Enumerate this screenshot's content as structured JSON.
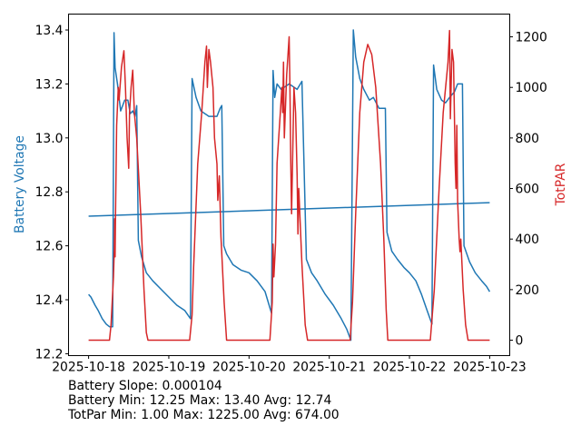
{
  "chart_data": {
    "type": "line",
    "xlabel": "",
    "x_ticks": [
      "2025-10-18",
      "2025-10-19",
      "2025-10-20",
      "2025-10-21",
      "2025-10-22",
      "2025-10-23"
    ],
    "x_unit": "days since 2025-10-18",
    "xlim": [
      -0.25,
      5.25
    ],
    "left_axis": {
      "label": "Battery Voltage",
      "color": "#1f77b4",
      "ylim": [
        12.193,
        13.459
      ],
      "ticks": [
        "12.2",
        "12.4",
        "12.6",
        "12.8",
        "13.0",
        "13.2",
        "13.4"
      ]
    },
    "right_axis": {
      "label": "TotPAR",
      "color": "#d62728",
      "ylim": [
        -61,
        1290
      ],
      "ticks": [
        "0",
        "200",
        "400",
        "600",
        "800",
        "1000",
        "1200"
      ]
    },
    "series": [
      {
        "name": "Battery Voltage",
        "axis": "left",
        "color": "#1f77b4",
        "points": [
          [
            0,
            12.42
          ],
          [
            0.03,
            12.41
          ],
          [
            0.08,
            12.38
          ],
          [
            0.12,
            12.36
          ],
          [
            0.17,
            12.33
          ],
          [
            0.22,
            12.31
          ],
          [
            0.26,
            12.3
          ],
          [
            0.3,
            12.3
          ],
          [
            0.317,
            13.39
          ],
          [
            0.33,
            13.26
          ],
          [
            0.36,
            13.2
          ],
          [
            0.4,
            13.1
          ],
          [
            0.45,
            13.14
          ],
          [
            0.49,
            13.14
          ],
          [
            0.52,
            13.09
          ],
          [
            0.55,
            13.1
          ],
          [
            0.58,
            13.08
          ],
          [
            0.6,
            13.12
          ],
          [
            0.62,
            12.62
          ],
          [
            0.66,
            12.56
          ],
          [
            0.72,
            12.5
          ],
          [
            0.8,
            12.47
          ],
          [
            0.9,
            12.44
          ],
          [
            1.0,
            12.41
          ],
          [
            1.1,
            12.38
          ],
          [
            1.2,
            12.36
          ],
          [
            1.27,
            12.33
          ],
          [
            1.29,
            13.22
          ],
          [
            1.34,
            13.15
          ],
          [
            1.4,
            13.1
          ],
          [
            1.5,
            13.08
          ],
          [
            1.6,
            13.08
          ],
          [
            1.64,
            13.11
          ],
          [
            1.66,
            13.12
          ],
          [
            1.685,
            12.6
          ],
          [
            1.72,
            12.57
          ],
          [
            1.8,
            12.53
          ],
          [
            1.9,
            12.51
          ],
          [
            2.0,
            12.5
          ],
          [
            2.1,
            12.47
          ],
          [
            2.2,
            12.43
          ],
          [
            2.26,
            12.37
          ],
          [
            2.28,
            12.35
          ],
          [
            2.3,
            13.25
          ],
          [
            2.32,
            13.15
          ],
          [
            2.35,
            13.2
          ],
          [
            2.4,
            13.18
          ],
          [
            2.5,
            13.2
          ],
          [
            2.6,
            13.18
          ],
          [
            2.66,
            13.21
          ],
          [
            2.715,
            12.55
          ],
          [
            2.78,
            12.5
          ],
          [
            2.85,
            12.47
          ],
          [
            2.95,
            12.42
          ],
          [
            3.05,
            12.38
          ],
          [
            3.15,
            12.33
          ],
          [
            3.22,
            12.29
          ],
          [
            3.27,
            12.25
          ],
          [
            3.3,
            13.4
          ],
          [
            3.33,
            13.3
          ],
          [
            3.38,
            13.22
          ],
          [
            3.43,
            13.18
          ],
          [
            3.5,
            13.14
          ],
          [
            3.55,
            13.15
          ],
          [
            3.62,
            13.11
          ],
          [
            3.7,
            13.11
          ],
          [
            3.72,
            12.65
          ],
          [
            3.78,
            12.58
          ],
          [
            3.85,
            12.55
          ],
          [
            3.93,
            12.52
          ],
          [
            4.0,
            12.5
          ],
          [
            4.08,
            12.47
          ],
          [
            4.15,
            12.42
          ],
          [
            4.22,
            12.36
          ],
          [
            4.28,
            12.31
          ],
          [
            4.3,
            13.27
          ],
          [
            4.34,
            13.18
          ],
          [
            4.4,
            13.14
          ],
          [
            4.45,
            13.13
          ],
          [
            4.5,
            13.15
          ],
          [
            4.56,
            13.17
          ],
          [
            4.6,
            13.2
          ],
          [
            4.66,
            13.2
          ],
          [
            4.68,
            12.6
          ],
          [
            4.75,
            12.54
          ],
          [
            4.82,
            12.5
          ],
          [
            4.9,
            12.47
          ],
          [
            4.96,
            12.45
          ],
          [
            5.0,
            12.43
          ]
        ]
      },
      {
        "name": "Battery Trend",
        "axis": "left",
        "color": "#1f77b4",
        "points": [
          [
            0,
            12.71
          ],
          [
            5,
            12.76
          ]
        ]
      },
      {
        "name": "TotPAR",
        "axis": "right",
        "color": "#d62728",
        "points": [
          [
            0,
            0
          ],
          [
            0.26,
            0
          ],
          [
            0.28,
            60
          ],
          [
            0.31,
            250
          ],
          [
            0.32,
            360
          ],
          [
            0.325,
            480
          ],
          [
            0.33,
            330
          ],
          [
            0.335,
            480
          ],
          [
            0.35,
            850
          ],
          [
            0.37,
            1000
          ],
          [
            0.38,
            950
          ],
          [
            0.41,
            1080
          ],
          [
            0.44,
            1145
          ],
          [
            0.46,
            1000
          ],
          [
            0.48,
            800
          ],
          [
            0.5,
            680
          ],
          [
            0.51,
            900
          ],
          [
            0.53,
            1000
          ],
          [
            0.55,
            1068
          ],
          [
            0.57,
            900
          ],
          [
            0.6,
            800
          ],
          [
            0.65,
            500
          ],
          [
            0.69,
            200
          ],
          [
            0.72,
            30
          ],
          [
            0.74,
            0
          ],
          [
            1.26,
            0
          ],
          [
            1.29,
            100
          ],
          [
            1.31,
            290
          ],
          [
            1.36,
            697
          ],
          [
            1.41,
            900
          ],
          [
            1.45,
            1100
          ],
          [
            1.47,
            1163
          ],
          [
            1.48,
            1000
          ],
          [
            1.5,
            1150
          ],
          [
            1.52,
            1100
          ],
          [
            1.55,
            1000
          ],
          [
            1.57,
            800
          ],
          [
            1.6,
            697
          ],
          [
            1.61,
            553
          ],
          [
            1.63,
            650
          ],
          [
            1.65,
            409
          ],
          [
            1.69,
            150
          ],
          [
            1.72,
            0
          ],
          [
            2.26,
            0
          ],
          [
            2.29,
            150
          ],
          [
            2.3,
            380
          ],
          [
            2.31,
            250
          ],
          [
            2.33,
            380
          ],
          [
            2.35,
            700
          ],
          [
            2.39,
            900
          ],
          [
            2.41,
            1000
          ],
          [
            2.42,
            900
          ],
          [
            2.43,
            1100
          ],
          [
            2.44,
            800
          ],
          [
            2.47,
            1050
          ],
          [
            2.5,
            1200
          ],
          [
            2.51,
            1000
          ],
          [
            2.52,
            700
          ],
          [
            2.53,
            500
          ],
          [
            2.56,
            1000
          ],
          [
            2.58,
            900
          ],
          [
            2.6,
            650
          ],
          [
            2.61,
            420
          ],
          [
            2.62,
            600
          ],
          [
            2.66,
            300
          ],
          [
            2.7,
            60
          ],
          [
            2.73,
            0
          ],
          [
            3.26,
            0
          ],
          [
            3.29,
            150
          ],
          [
            3.33,
            500
          ],
          [
            3.38,
            900
          ],
          [
            3.43,
            1100
          ],
          [
            3.48,
            1170
          ],
          [
            3.53,
            1130
          ],
          [
            3.58,
            1000
          ],
          [
            3.64,
            700
          ],
          [
            3.68,
            400
          ],
          [
            3.71,
            120
          ],
          [
            3.73,
            0
          ],
          [
            4.26,
            0
          ],
          [
            4.31,
            200
          ],
          [
            4.37,
            600
          ],
          [
            4.42,
            900
          ],
          [
            4.48,
            1100
          ],
          [
            4.5,
            1225
          ],
          [
            4.51,
            876
          ],
          [
            4.53,
            1150
          ],
          [
            4.55,
            1100
          ],
          [
            4.57,
            700
          ],
          [
            4.58,
            600
          ],
          [
            4.59,
            850
          ],
          [
            4.6,
            550
          ],
          [
            4.62,
            400
          ],
          [
            4.63,
            350
          ],
          [
            4.64,
            400
          ],
          [
            4.67,
            200
          ],
          [
            4.7,
            60
          ],
          [
            4.73,
            0
          ],
          [
            5.0,
            0
          ]
        ]
      }
    ]
  },
  "footer": {
    "slope": "Battery Slope: 0.000104",
    "battery_stats": "Battery Min: 12.25 Max: 13.40 Avg: 12.74",
    "par_stats": "TotPar Min: 1.00 Max: 1225.00 Avg: 674.00"
  }
}
